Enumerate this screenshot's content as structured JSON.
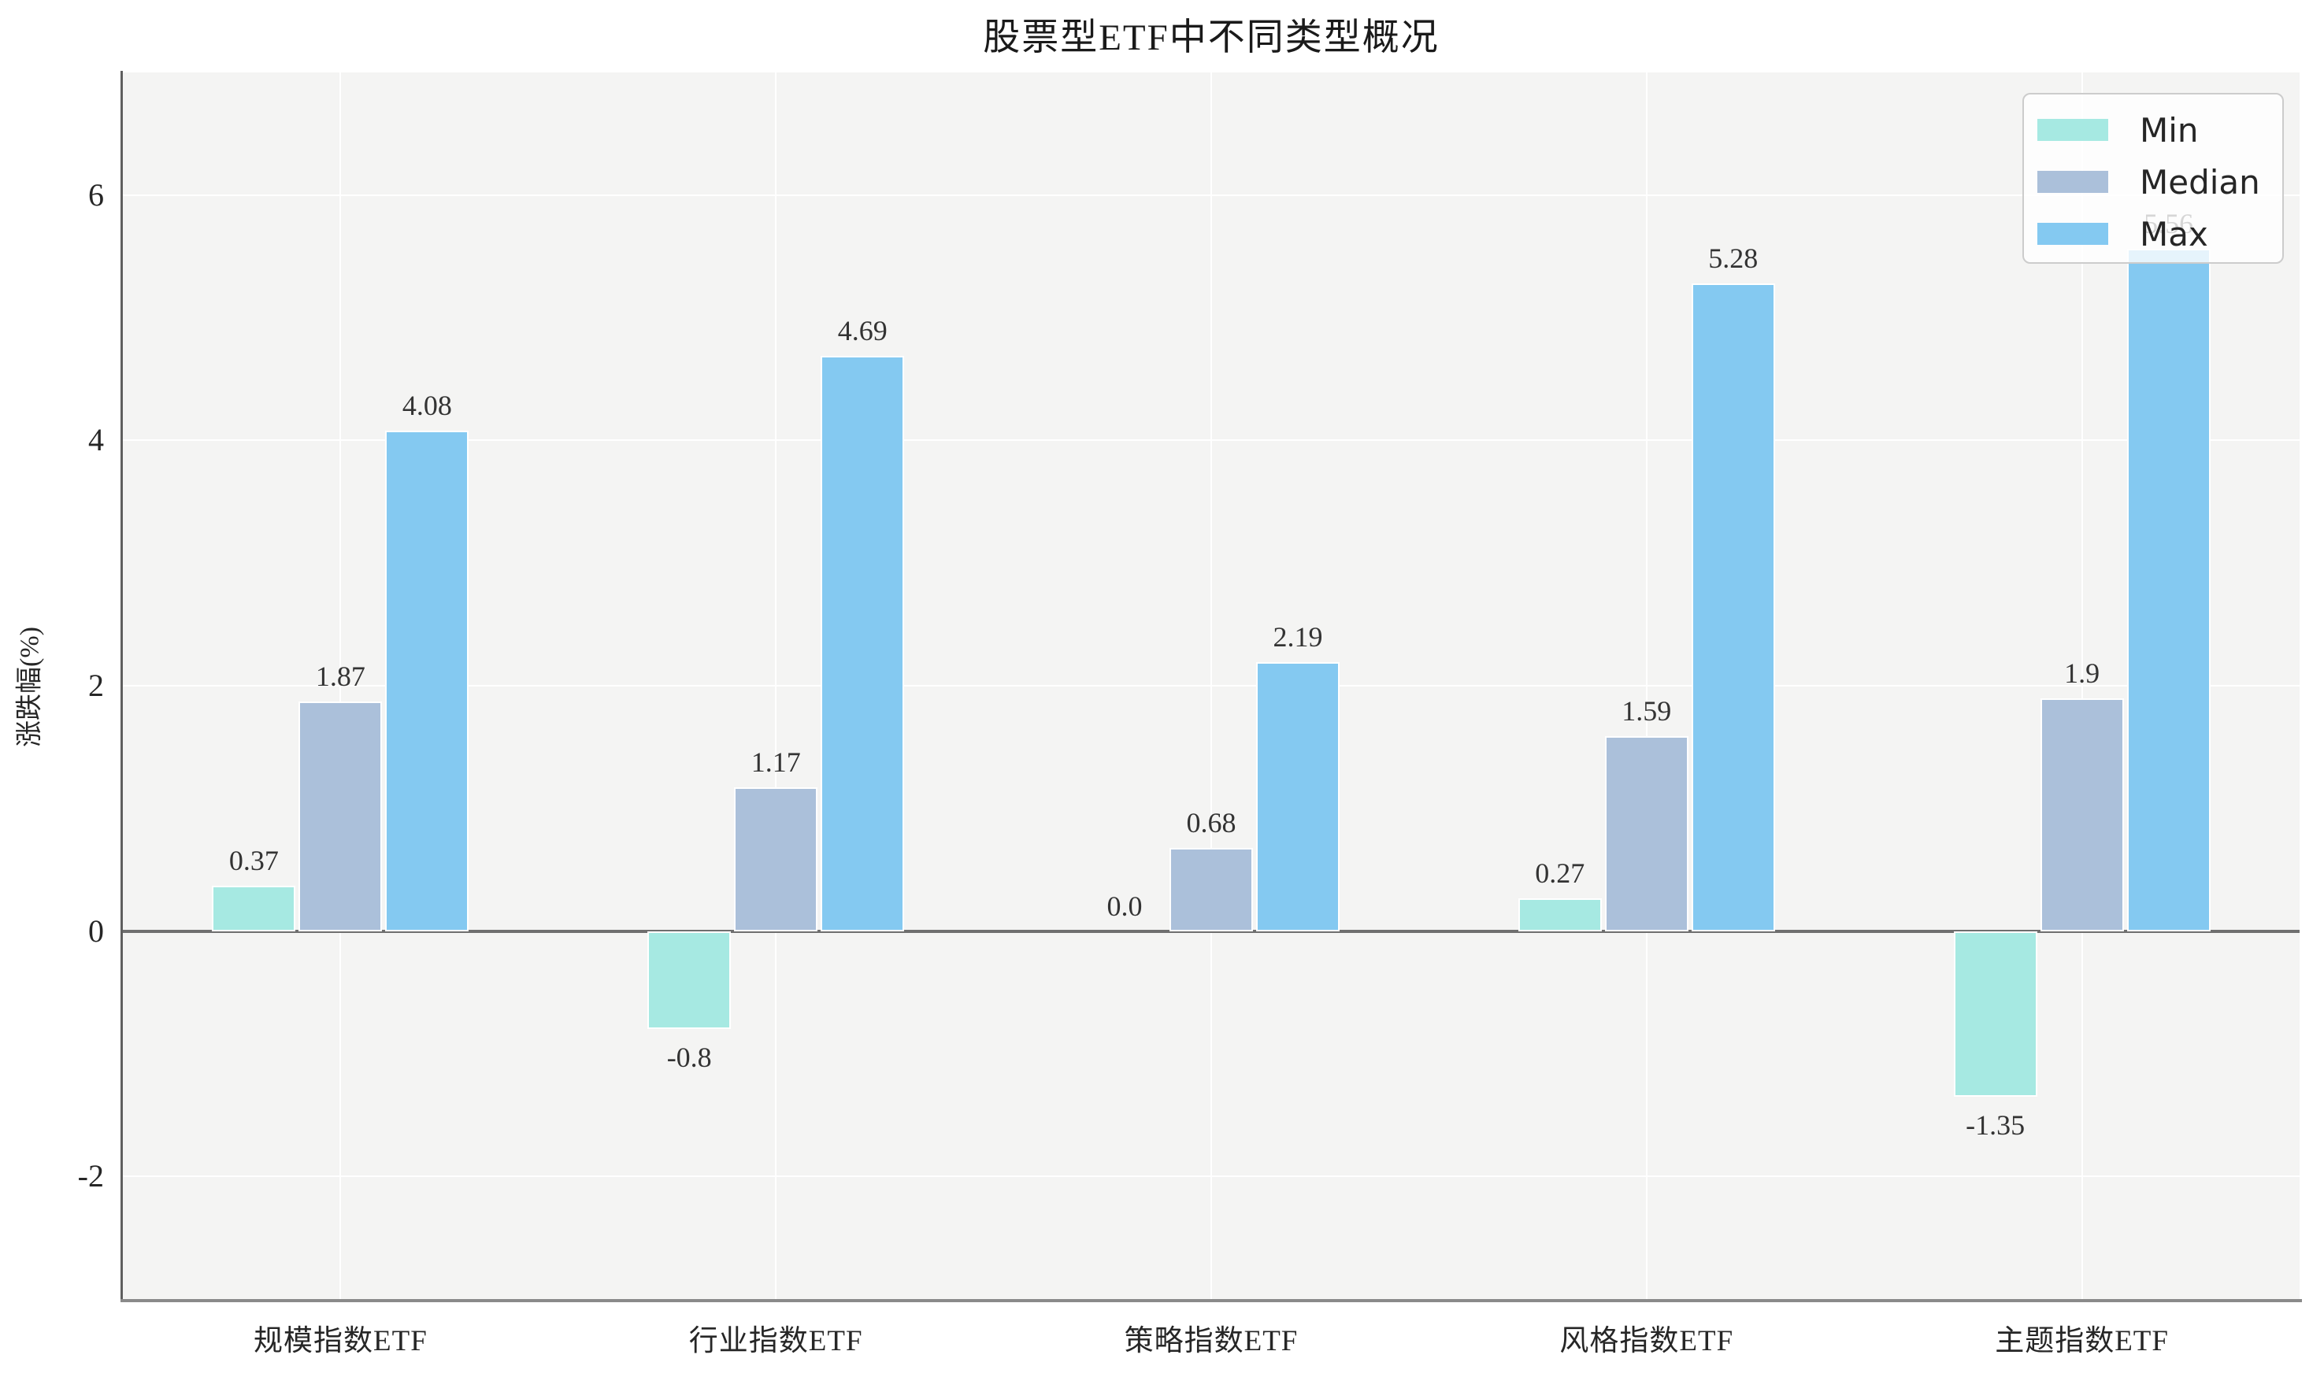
{
  "page_title": "股票型ETF中不同类型概况",
  "chart_data": {
    "type": "bar",
    "title": "股票型ETF中不同类型概况",
    "xlabel": "",
    "ylabel": "涨跌幅(%)",
    "categories": [
      "规模指数ETF",
      "行业指数ETF",
      "策略指数ETF",
      "风格指数ETF",
      "主题指数ETF"
    ],
    "series": [
      {
        "name": "Min",
        "color": "#a6e9e2",
        "values": [
          0.37,
          -0.8,
          0.0,
          0.27,
          -1.35
        ],
        "value_labels": [
          "0.37",
          "-0.8",
          "0.0",
          "0.27",
          "-1.35"
        ]
      },
      {
        "name": "Median",
        "color": "#abc0da",
        "values": [
          1.87,
          1.17,
          0.68,
          1.59,
          1.9
        ],
        "value_labels": [
          "1.87",
          "1.17",
          "0.68",
          "1.59",
          "1.9"
        ]
      },
      {
        "name": "Max",
        "color": "#84c9f1",
        "values": [
          4.08,
          4.69,
          2.19,
          5.28,
          5.56
        ],
        "value_labels": [
          "4.08",
          "4.69",
          "2.19",
          "5.28",
          "5.56"
        ]
      }
    ],
    "ylim": [
      -3,
      7
    ],
    "yticks": [
      -2,
      0,
      2,
      4,
      6
    ],
    "ytick_labels": [
      "-2",
      "0",
      "2",
      "4",
      "6"
    ],
    "grid": "on",
    "legend_position": "upper right",
    "legend_entries": [
      "Min",
      "Median",
      "Max"
    ]
  },
  "colors": {
    "figure_bg": "#ffffff",
    "plot_bg": "#f4f4f3",
    "grid": "#ffffff",
    "zero_line": "#6f6f6f",
    "spine": "#5f5f5f",
    "text": "#262626",
    "value_label_text": "#333333",
    "legend_bg": "rgba(255,255,255,0.8)",
    "legend_border": "#cccccc"
  }
}
